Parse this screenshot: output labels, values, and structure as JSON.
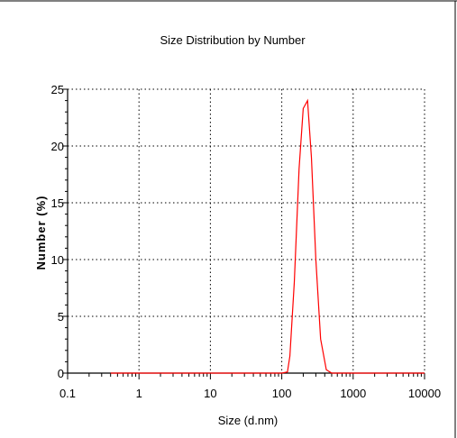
{
  "chart_data": {
    "type": "line",
    "title": "Size Distribution by Number",
    "xlabel": "Size (d.nm)",
    "ylabel": "Number (%)",
    "x_scale": "log",
    "xlim": [
      0.1,
      10000
    ],
    "ylim": [
      0,
      25
    ],
    "x_ticks": [
      0.1,
      1,
      10,
      100,
      1000,
      10000
    ],
    "x_tick_labels": [
      "0.1",
      "1",
      "10",
      "100",
      "1000",
      "10000"
    ],
    "y_ticks": [
      0,
      5,
      10,
      15,
      20,
      25
    ],
    "y_tick_labels": [
      "0",
      "5",
      "10",
      "15",
      "20",
      "25"
    ],
    "grid": true,
    "series": [
      {
        "color": "#ff0000",
        "x": [
          0.4,
          1,
          10,
          100,
          120,
          130,
          150,
          175,
          200,
          230,
          260,
          300,
          350,
          420,
          500,
          600,
          1000,
          10000
        ],
        "y": [
          0,
          0,
          0,
          0,
          0.1,
          1.5,
          8,
          18,
          23.3,
          24,
          19,
          10,
          3,
          0.3,
          0,
          0,
          0,
          0
        ]
      }
    ]
  },
  "colors": {
    "background": "#ffffff",
    "axis": "#000000",
    "series": "#ff0000"
  }
}
